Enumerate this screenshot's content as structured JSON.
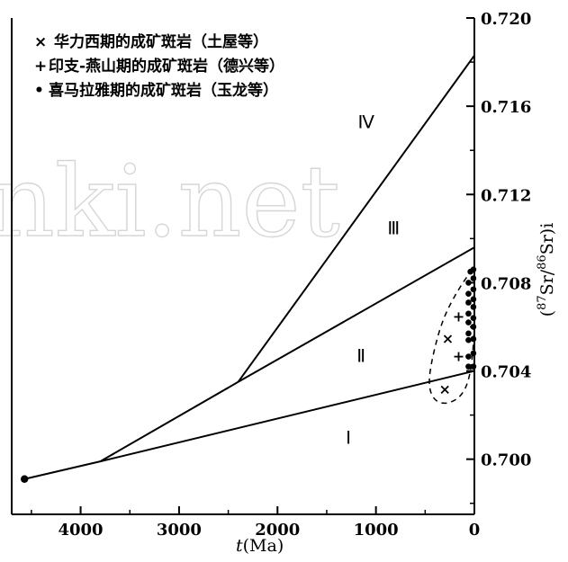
{
  "chart_data": {
    "type": "scatter",
    "xlabel_italic": "t",
    "xlabel_rest": "(Ma)",
    "ylabel": "(87Sr/86Sr)i",
    "ylabel_parts": {
      "open": "(",
      "sup1": "87",
      "mid": "Sr/",
      "sup2": "86",
      "close": "Sr)i"
    },
    "xlim": [
      4700,
      0
    ],
    "ylim": [
      0.6975,
      0.72
    ],
    "x_ticks": [
      4000,
      3000,
      2000,
      1000,
      0
    ],
    "x_tick_labels": [
      "4000",
      "3000",
      "2000",
      "1000",
      "0"
    ],
    "y_ticks": [
      0.7,
      0.704,
      0.708,
      0.712,
      0.716,
      0.72
    ],
    "y_tick_labels": [
      "0.700",
      "0.704",
      "0.708",
      "0.712",
      "0.716",
      "0.720"
    ],
    "legend": [
      {
        "marker": "×",
        "label": "华力西期的成矿斑岩（土屋等）"
      },
      {
        "marker": "+",
        "label": "印支-燕山期的成矿斑岩（德兴等）"
      },
      {
        "marker": "•",
        "label": "喜马拉雅期的成矿斑岩（玉龙等）"
      }
    ],
    "evolution_lines": [
      {
        "from": [
          4570,
          0.6991
        ],
        "to": [
          3800,
          0.6999
        ]
      },
      {
        "from": [
          3800,
          0.6999
        ],
        "to": [
          0,
          0.704
        ]
      },
      {
        "from": [
          3800,
          0.6999
        ],
        "to": [
          2400,
          0.7035
        ]
      },
      {
        "from": [
          2400,
          0.7035
        ],
        "to": [
          0,
          0.7096
        ]
      },
      {
        "from": [
          2400,
          0.7035
        ],
        "to": [
          0,
          0.7183
        ]
      }
    ],
    "region_labels": [
      {
        "text": "Ⅳ",
        "x": 1100,
        "y": 0.715
      },
      {
        "text": "Ⅲ",
        "x": 820,
        "y": 0.7102
      },
      {
        "text": "Ⅱ",
        "x": 1150,
        "y": 0.7044
      },
      {
        "text": "Ⅰ",
        "x": 1280,
        "y": 0.7007
      }
    ],
    "series": [
      {
        "name": "华力西期的成矿斑岩（土屋等）",
        "marker": "x",
        "points": [
          [
            300,
            0.70315
          ],
          [
            270,
            0.70545
          ]
        ]
      },
      {
        "name": "印支-燕山期的成矿斑岩（德兴等）",
        "marker": "+",
        "points": [
          [
            160,
            0.70465
          ],
          [
            160,
            0.70645
          ]
        ]
      },
      {
        "name": "喜马拉雅期的成矿斑岩（玉龙等）",
        "marker": "dot",
        "points": [
          [
            60,
            0.7042
          ],
          [
            10,
            0.7042
          ],
          [
            60,
            0.70465
          ],
          [
            10,
            0.7048
          ],
          [
            60,
            0.7054
          ],
          [
            10,
            0.70545
          ],
          [
            60,
            0.7057
          ],
          [
            10,
            0.706
          ],
          [
            60,
            0.7062
          ],
          [
            10,
            0.7064
          ],
          [
            60,
            0.7066
          ],
          [
            10,
            0.7069
          ],
          [
            60,
            0.7071
          ],
          [
            10,
            0.70725
          ],
          [
            60,
            0.7075
          ],
          [
            10,
            0.7077
          ],
          [
            60,
            0.708
          ],
          [
            10,
            0.7082
          ],
          [
            40,
            0.7085
          ],
          [
            10,
            0.7086
          ]
        ]
      }
    ],
    "field_outline": [
      [
        20,
        0.7086
      ],
      [
        150,
        0.7078
      ],
      [
        320,
        0.7064
      ],
      [
        430,
        0.7046
      ],
      [
        470,
        0.7033
      ],
      [
        400,
        0.7026
      ],
      [
        260,
        0.7025
      ],
      [
        120,
        0.7029
      ],
      [
        40,
        0.7038
      ],
      [
        0,
        0.7056
      ],
      [
        5,
        0.7076
      ]
    ],
    "start_point": [
      4570,
      0.6991
    ],
    "watermark_text": "nki.net"
  }
}
